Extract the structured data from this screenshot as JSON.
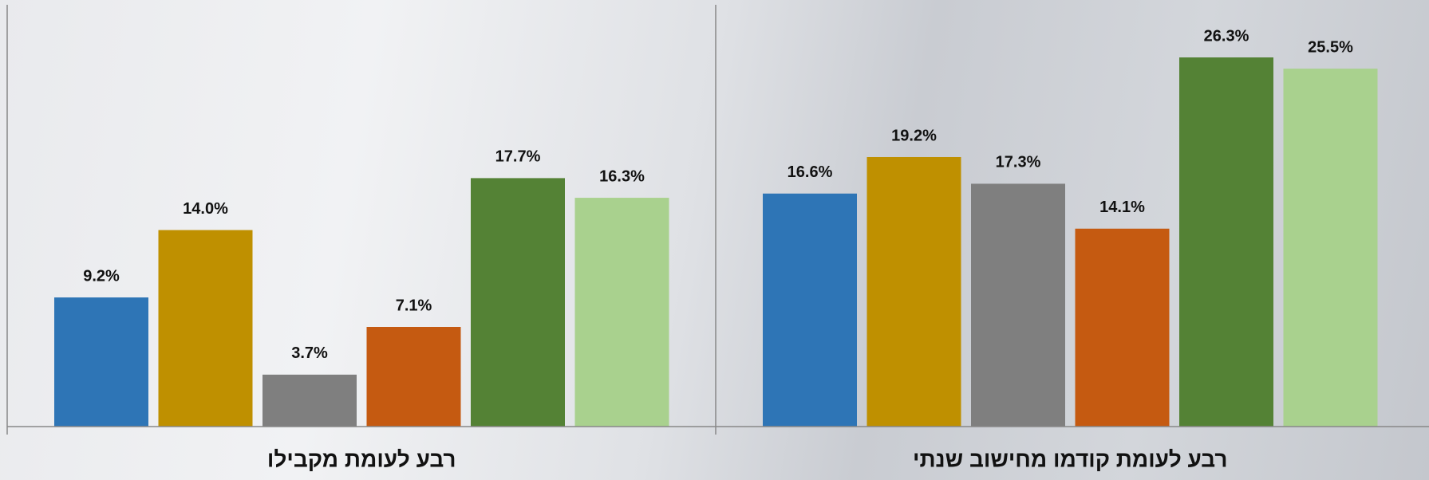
{
  "chart_data": {
    "type": "bar",
    "categories": [
      "רבע לעומת מקבילו",
      "רבע לעומת קודמו מחישוב שנתי"
    ],
    "series": [
      {
        "color": "#2e75b6",
        "values": [
          9.2,
          16.6
        ],
        "value_labels": [
          "9.2%",
          "16.6%"
        ]
      },
      {
        "color": "#bf9000",
        "values": [
          14.0,
          19.2
        ],
        "value_labels": [
          "14.0%",
          "19.2%"
        ]
      },
      {
        "color": "#7f7f7f",
        "values": [
          3.7,
          17.3
        ],
        "value_labels": [
          "3.7%",
          "17.3%"
        ]
      },
      {
        "color": "#c55a11",
        "values": [
          7.1,
          14.1
        ],
        "value_labels": [
          "7.1%",
          "14.1%"
        ]
      },
      {
        "color": "#548235",
        "values": [
          17.7,
          26.3
        ],
        "value_labels": [
          "17.7%",
          "26.3%"
        ]
      },
      {
        "color": "#a9d18e",
        "values": [
          16.3,
          25.5
        ],
        "value_labels": [
          "16.3%",
          "25.5%"
        ]
      }
    ]
  }
}
